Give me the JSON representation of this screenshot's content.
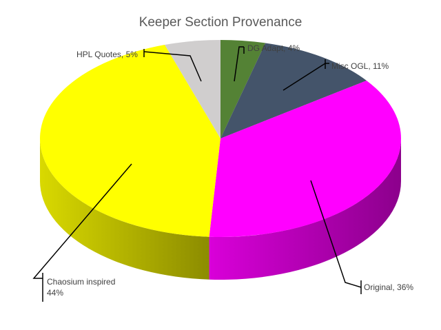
{
  "chart_data": {
    "type": "pie",
    "variant": "3d",
    "title": "Keeper Section Provenance",
    "slices": [
      {
        "label": "DG Adapt",
        "value": 4,
        "display": "4%",
        "color": "#548235"
      },
      {
        "label": "Misc OGL",
        "value": 11,
        "display": "11%",
        "color": "#44546A"
      },
      {
        "label": "Original",
        "value": 36,
        "display": "36%",
        "color": "#FF00FF"
      },
      {
        "label": "Chaosium inspired",
        "value": 44,
        "display": "44%",
        "color": "#FFFF00"
      },
      {
        "label": "HPL Quotes",
        "value": 5,
        "display": "5%",
        "color": "#D0CECE"
      }
    ],
    "legend": "none",
    "data_labels": "outside with leader lines"
  }
}
